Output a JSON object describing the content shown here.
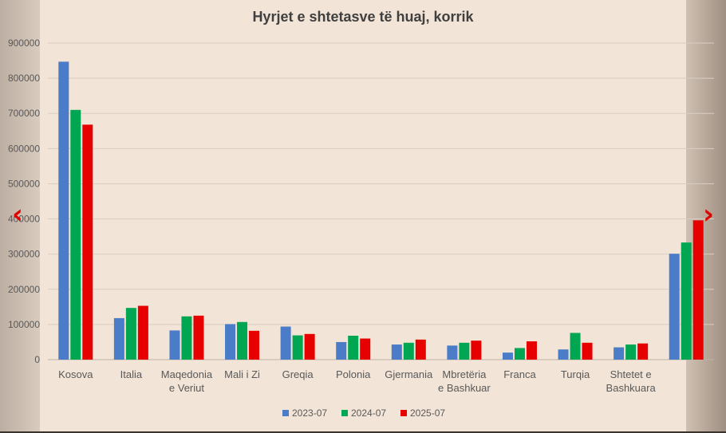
{
  "nav": {
    "prev_glyph": "‹",
    "next_glyph": "›"
  },
  "colors": {
    "series": [
      "#4a7cc8",
      "#00a651",
      "#e60000"
    ],
    "grid": "#d9cdc2",
    "text": "#595959",
    "title": "#404040"
  },
  "chart_data": {
    "type": "bar",
    "title": "Hyrjet e shtetasve të huaj, korrik",
    "xlabel": "",
    "ylabel": "",
    "ylim": [
      0,
      900000
    ],
    "yticks": [
      0,
      100000,
      200000,
      300000,
      400000,
      500000,
      600000,
      700000,
      800000,
      900000
    ],
    "grid": true,
    "legend_position": "bottom",
    "categories": [
      [
        "Kosova"
      ],
      [
        "Italia"
      ],
      [
        "Maqedonia",
        "e Veriut"
      ],
      [
        "Mali i Zi"
      ],
      [
        "Greqia"
      ],
      [
        "Polonia"
      ],
      [
        "Gjermania"
      ],
      [
        "Mbretëria",
        "e Bashkuar"
      ],
      [
        "Franca"
      ],
      [
        "Turqia"
      ],
      [
        "Shtetet e",
        "Bashkuara"
      ],
      [
        ""
      ]
    ],
    "series": [
      {
        "name": "2023-07",
        "values": [
          847000,
          118000,
          83000,
          101000,
          94000,
          50000,
          43000,
          40000,
          20000,
          29000,
          35000,
          301000
        ]
      },
      {
        "name": "2024-07",
        "values": [
          710000,
          147000,
          123000,
          107000,
          69000,
          68000,
          48000,
          48000,
          33000,
          76000,
          43000,
          333000
        ]
      },
      {
        "name": "2025-07",
        "values": [
          668000,
          153000,
          125000,
          82000,
          73000,
          60000,
          57000,
          54000,
          52000,
          48000,
          46000,
          396000
        ]
      }
    ]
  }
}
